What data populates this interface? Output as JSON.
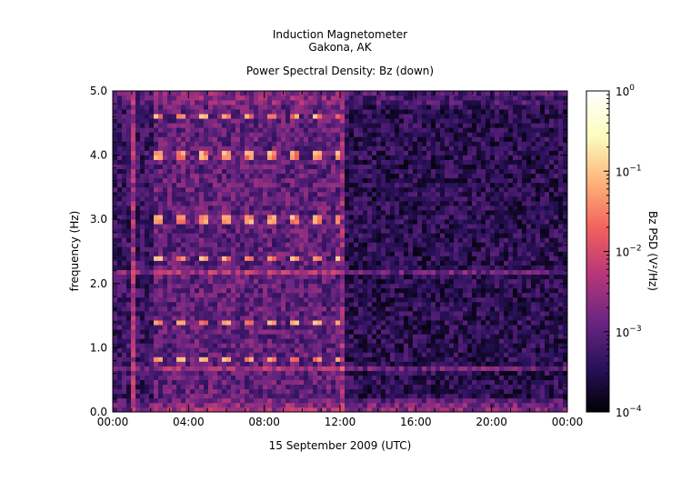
{
  "chart_data": {
    "type": "heatmap",
    "title": "Induction Magnetometer",
    "subtitle": "Gakona, AK",
    "plot_title": "Power Spectral Density: Bz (down)",
    "xlabel": "15 September 2009 (UTC)",
    "ylabel": "frequency (Hz)",
    "x_tick_labels": [
      "00:00",
      "04:00",
      "08:00",
      "12:00",
      "16:00",
      "20:00",
      "00:00"
    ],
    "x_ticks_hours": [
      0,
      4,
      8,
      12,
      16,
      20,
      24
    ],
    "xlim_hours": [
      0,
      24
    ],
    "y_tick_labels": [
      "0.0",
      "1.0",
      "2.0",
      "3.0",
      "4.0",
      "5.0"
    ],
    "y_ticks": [
      0,
      1,
      2,
      3,
      4,
      5
    ],
    "ylim": [
      0,
      5
    ],
    "colorbar": {
      "label": "Bz PSD (V²/Hz)",
      "scale": "log",
      "range": [
        0.0001,
        1
      ],
      "tick_labels": [
        {
          "base": "10",
          "exp": "0"
        },
        {
          "base": "10",
          "exp": "−1"
        },
        {
          "base": "10",
          "exp": "−2"
        },
        {
          "base": "10",
          "exp": "−3"
        },
        {
          "base": "10",
          "exp": "−4"
        }
      ],
      "tick_log10": [
        0,
        -1,
        -2,
        -3,
        -4
      ],
      "colormap": [
        "#000004",
        "#2a115c",
        "#6a2582",
        "#b73779",
        "#f1605d",
        "#feb078",
        "#fcfdbf",
        "#ffffff"
      ]
    },
    "features": {
      "pulsed_transmitter_window_hours": [
        2.2,
        12.0
      ],
      "pulse_lines_hz": [
        0.8,
        1.4,
        2.4,
        3.0,
        4.0,
        4.6
      ],
      "background_level_log10": -3.3,
      "broadband_spike_hours": [
        1.0,
        12.1
      ],
      "continuous_lines_hz": [
        0.65,
        2.15
      ]
    }
  }
}
